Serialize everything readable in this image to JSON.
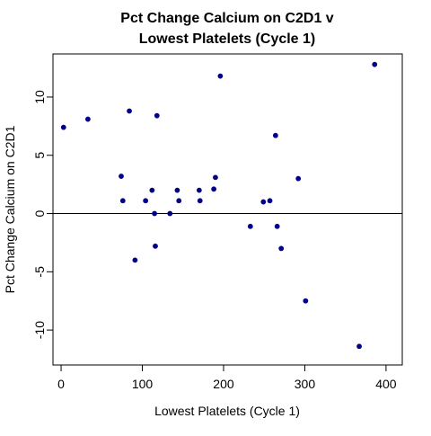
{
  "chart_data": {
    "type": "scatter",
    "title_line1": "Pct Change Calcium on C2D1 v",
    "title_line2": "Lowest Platelets (Cycle 1)",
    "xlabel": "Lowest Platelets (Cycle 1)",
    "ylabel": "Pct Change Calcium on C2D1",
    "xlim": [
      -10,
      420
    ],
    "ylim": [
      -13,
      13.7
    ],
    "xticks": [
      0,
      100,
      200,
      300,
      400
    ],
    "yticks": [
      -10,
      -5,
      0,
      5,
      10
    ],
    "reference_line_y": 0,
    "point_color": "#00008B",
    "grid": false,
    "points": [
      {
        "x": 3,
        "y": 7.4
      },
      {
        "x": 33,
        "y": 8.1
      },
      {
        "x": 74,
        "y": 3.2
      },
      {
        "x": 76,
        "y": 1.1
      },
      {
        "x": 84,
        "y": 8.8
      },
      {
        "x": 91,
        "y": -4.0
      },
      {
        "x": 104,
        "y": 1.1
      },
      {
        "x": 112,
        "y": 2.0
      },
      {
        "x": 115,
        "y": 0.0
      },
      {
        "x": 116,
        "y": -2.8
      },
      {
        "x": 118,
        "y": 8.4
      },
      {
        "x": 134,
        "y": 0.0
      },
      {
        "x": 143,
        "y": 2.0
      },
      {
        "x": 145,
        "y": 1.1
      },
      {
        "x": 170,
        "y": 2.0
      },
      {
        "x": 171,
        "y": 1.1
      },
      {
        "x": 188,
        "y": 2.1
      },
      {
        "x": 190,
        "y": 3.1
      },
      {
        "x": 196,
        "y": 11.8
      },
      {
        "x": 233,
        "y": -1.1
      },
      {
        "x": 249,
        "y": 1.0
      },
      {
        "x": 257,
        "y": 1.1
      },
      {
        "x": 264,
        "y": 6.7
      },
      {
        "x": 266,
        "y": -1.1
      },
      {
        "x": 271,
        "y": -3.0
      },
      {
        "x": 292,
        "y": 3.0
      },
      {
        "x": 301,
        "y": -7.5
      },
      {
        "x": 367,
        "y": -11.4
      },
      {
        "x": 386,
        "y": 12.8
      }
    ]
  }
}
